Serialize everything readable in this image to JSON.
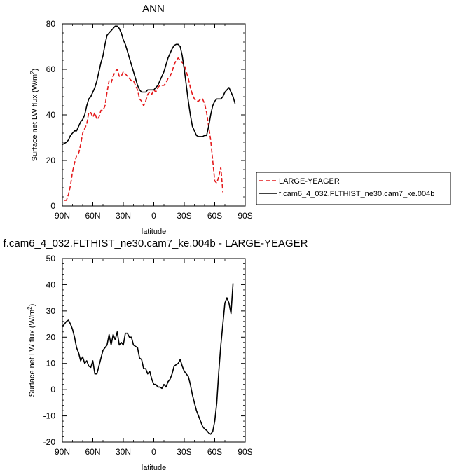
{
  "chart_data": [
    {
      "type": "line",
      "title": "ANN",
      "xlabel": "latitude",
      "ylabel_main": "Surface net LW flux (W/m",
      "ylabel_sup": "2",
      "ylabel_end": ")",
      "xlim": [
        90,
        -90
      ],
      "ylim": [
        0,
        80
      ],
      "xticks": [
        90,
        60,
        30,
        0,
        -30,
        -60,
        -90
      ],
      "xtick_labels": [
        "90N",
        "60N",
        "30N",
        "0",
        "30S",
        "60S",
        "90S"
      ],
      "yticks": [
        0,
        20,
        40,
        60,
        80
      ],
      "ytick_labels": [
        "0",
        "20",
        "40",
        "60",
        "80"
      ],
      "grid": false,
      "legend_position": "right",
      "series": [
        {
          "name": "LARGE-YEAGER",
          "color": "#e41a1c",
          "style": "dashed",
          "points": [
            [
              88,
              2.5
            ],
            [
              86,
              2.5
            ],
            [
              84,
              5
            ],
            [
              82,
              9
            ],
            [
              80,
              15
            ],
            [
              78,
              19
            ],
            [
              76,
              22
            ],
            [
              74,
              23
            ],
            [
              72,
              27
            ],
            [
              70,
              32
            ],
            [
              68,
              34
            ],
            [
              66,
              36
            ],
            [
              64,
              41
            ],
            [
              62,
              41
            ],
            [
              60,
              39
            ],
            [
              58,
              41
            ],
            [
              56,
              38
            ],
            [
              54,
              39
            ],
            [
              52,
              42
            ],
            [
              50,
              42
            ],
            [
              48,
              44
            ],
            [
              46,
              50
            ],
            [
              44,
              55
            ],
            [
              42,
              54
            ],
            [
              40,
              57
            ],
            [
              38,
              59
            ],
            [
              36,
              60
            ],
            [
              34,
              57
            ],
            [
              32,
              57
            ],
            [
              30,
              59
            ],
            [
              28,
              58
            ],
            [
              26,
              57
            ],
            [
              24,
              56
            ],
            [
              22,
              55
            ],
            [
              20,
              55
            ],
            [
              18,
              53
            ],
            [
              16,
              51
            ],
            [
              14,
              47
            ],
            [
              12,
              46
            ],
            [
              10,
              44
            ],
            [
              8,
              46
            ],
            [
              6,
              49
            ],
            [
              4,
              50
            ],
            [
              2,
              49
            ],
            [
              0,
              51
            ],
            [
              -2,
              50
            ],
            [
              -4,
              52
            ],
            [
              -6,
              53
            ],
            [
              -8,
              53
            ],
            [
              -10,
              53
            ],
            [
              -12,
              54
            ],
            [
              -14,
              56
            ],
            [
              -16,
              57
            ],
            [
              -18,
              59
            ],
            [
              -20,
              62
            ],
            [
              -22,
              64
            ],
            [
              -24,
              65
            ],
            [
              -26,
              64
            ],
            [
              -28,
              63
            ],
            [
              -30,
              62
            ],
            [
              -32,
              59
            ],
            [
              -34,
              56
            ],
            [
              -36,
              52
            ],
            [
              -38,
              49
            ],
            [
              -40,
              47
            ],
            [
              -42,
              46
            ],
            [
              -44,
              46
            ],
            [
              -46,
              47
            ],
            [
              -48,
              47
            ],
            [
              -50,
              45
            ],
            [
              -52,
              41
            ],
            [
              -54,
              35
            ],
            [
              -56,
              29
            ],
            [
              -58,
              20
            ],
            [
              -60,
              11
            ],
            [
              -62,
              10
            ],
            [
              -64,
              13
            ],
            [
              -66,
              17
            ],
            [
              -68,
              6
            ]
          ]
        },
        {
          "name": "f.cam6_4_032.FLTHIST_ne30.cam7_ke.004b",
          "color": "#000000",
          "style": "solid",
          "points": [
            [
              90,
              27
            ],
            [
              86,
              28
            ],
            [
              84,
              29
            ],
            [
              82,
              31
            ],
            [
              80,
              32
            ],
            [
              78,
              33
            ],
            [
              76,
              33
            ],
            [
              74,
              35
            ],
            [
              72,
              37
            ],
            [
              70,
              38
            ],
            [
              68,
              40
            ],
            [
              66,
              44
            ],
            [
              64,
              47
            ],
            [
              62,
              48
            ],
            [
              60,
              50
            ],
            [
              58,
              52
            ],
            [
              56,
              55
            ],
            [
              54,
              59
            ],
            [
              52,
              63
            ],
            [
              50,
              66
            ],
            [
              48,
              71
            ],
            [
              46,
              75
            ],
            [
              44,
              76
            ],
            [
              42,
              77
            ],
            [
              40,
              78
            ],
            [
              38,
              79
            ],
            [
              36,
              79
            ],
            [
              34,
              78
            ],
            [
              32,
              76
            ],
            [
              30,
              73
            ],
            [
              28,
              71
            ],
            [
              26,
              68
            ],
            [
              24,
              65
            ],
            [
              22,
              62
            ],
            [
              20,
              59
            ],
            [
              18,
              56
            ],
            [
              16,
              53
            ],
            [
              14,
              51
            ],
            [
              12,
              50
            ],
            [
              10,
              50
            ],
            [
              8,
              50
            ],
            [
              6,
              51
            ],
            [
              4,
              51
            ],
            [
              2,
              51
            ],
            [
              0,
              51
            ],
            [
              -2,
              52
            ],
            [
              -4,
              53
            ],
            [
              -6,
              55
            ],
            [
              -8,
              57
            ],
            [
              -10,
              59
            ],
            [
              -12,
              62
            ],
            [
              -14,
              65
            ],
            [
              -16,
              67
            ],
            [
              -18,
              69
            ],
            [
              -20,
              70.5
            ],
            [
              -22,
              71
            ],
            [
              -24,
              71
            ],
            [
              -26,
              70
            ],
            [
              -28,
              66
            ],
            [
              -30,
              60
            ],
            [
              -32,
              53
            ],
            [
              -34,
              46
            ],
            [
              -36,
              40
            ],
            [
              -38,
              35
            ],
            [
              -40,
              33
            ],
            [
              -42,
              31
            ],
            [
              -44,
              30.5
            ],
            [
              -46,
              30.5
            ],
            [
              -48,
              30.5
            ],
            [
              -50,
              31
            ],
            [
              -52,
              31
            ],
            [
              -54,
              35
            ],
            [
              -56,
              40
            ],
            [
              -58,
              44
            ],
            [
              -60,
              46
            ],
            [
              -62,
              47
            ],
            [
              -64,
              47
            ],
            [
              -66,
              47
            ],
            [
              -68,
              48
            ],
            [
              -70,
              50
            ],
            [
              -72,
              51
            ],
            [
              -74,
              52
            ],
            [
              -76,
              50
            ],
            [
              -78,
              48
            ],
            [
              -80,
              45
            ]
          ]
        }
      ]
    },
    {
      "type": "line",
      "title": "f.cam6_4_032.FLTHIST_ne30.cam7_ke.004b - LARGE-YEAGER",
      "xlabel": "latitude",
      "ylabel_main": "Surface net LW flux (W/m",
      "ylabel_sup": "2",
      "ylabel_end": ")",
      "xlim": [
        90,
        -90
      ],
      "ylim": [
        -20,
        50
      ],
      "xticks": [
        90,
        60,
        30,
        0,
        -30,
        -60,
        -90
      ],
      "xtick_labels": [
        "90N",
        "60N",
        "30N",
        "0",
        "30S",
        "60S",
        "90S"
      ],
      "yticks": [
        -20,
        -10,
        0,
        10,
        20,
        30,
        40,
        50
      ],
      "ytick_labels": [
        "-20",
        "-10",
        "0",
        "10",
        "20",
        "30",
        "40",
        "50"
      ],
      "grid": false,
      "series": [
        {
          "color": "#000000",
          "style": "solid",
          "points": [
            [
              90,
              24
            ],
            [
              88,
              25
            ],
            [
              86,
              26
            ],
            [
              84,
              26.5
            ],
            [
              82,
              25
            ],
            [
              80,
              23
            ],
            [
              78,
              20
            ],
            [
              76,
              16
            ],
            [
              74,
              14
            ],
            [
              72,
              11
            ],
            [
              70,
              12.5
            ],
            [
              68,
              10
            ],
            [
              66,
              11
            ],
            [
              64,
              9
            ],
            [
              62,
              8.5
            ],
            [
              60,
              11
            ],
            [
              58,
              6
            ],
            [
              56,
              6
            ],
            [
              54,
              9
            ],
            [
              52,
              12
            ],
            [
              50,
              15
            ],
            [
              48,
              16
            ],
            [
              46,
              17
            ],
            [
              44,
              21
            ],
            [
              42,
              17
            ],
            [
              40,
              21
            ],
            [
              38,
              19
            ],
            [
              36,
              22
            ],
            [
              34,
              17
            ],
            [
              32,
              18
            ],
            [
              30,
              17
            ],
            [
              28,
              21.5
            ],
            [
              26,
              21.5
            ],
            [
              24,
              20
            ],
            [
              22,
              20
            ],
            [
              20,
              17
            ],
            [
              18,
              16.5
            ],
            [
              16,
              16
            ],
            [
              14,
              12
            ],
            [
              12,
              11.5
            ],
            [
              10,
              8
            ],
            [
              8,
              8
            ],
            [
              6,
              6
            ],
            [
              4,
              7
            ],
            [
              2,
              4
            ],
            [
              0,
              2
            ],
            [
              -2,
              2
            ],
            [
              -4,
              1
            ],
            [
              -6,
              1
            ],
            [
              -8,
              0.5
            ],
            [
              -10,
              2
            ],
            [
              -12,
              1
            ],
            [
              -14,
              3
            ],
            [
              -16,
              4
            ],
            [
              -18,
              6
            ],
            [
              -20,
              9
            ],
            [
              -22,
              9.5
            ],
            [
              -24,
              10
            ],
            [
              -26,
              11.5
            ],
            [
              -28,
              9
            ],
            [
              -30,
              7
            ],
            [
              -32,
              6
            ],
            [
              -34,
              5
            ],
            [
              -36,
              2
            ],
            [
              -38,
              -2
            ],
            [
              -40,
              -5
            ],
            [
              -42,
              -8
            ],
            [
              -44,
              -10
            ],
            [
              -46,
              -12
            ],
            [
              -48,
              -14
            ],
            [
              -50,
              -15
            ],
            [
              -52,
              -15.5
            ],
            [
              -54,
              -16.5
            ],
            [
              -56,
              -17
            ],
            [
              -58,
              -16
            ],
            [
              -60,
              -12
            ],
            [
              -62,
              -5
            ],
            [
              -64,
              7
            ],
            [
              -66,
              17
            ],
            [
              -68,
              25
            ],
            [
              -70,
              33
            ],
            [
              -72,
              35
            ],
            [
              -74,
              33
            ],
            [
              -76,
              29
            ],
            [
              -78,
              40.5
            ]
          ]
        }
      ]
    }
  ]
}
